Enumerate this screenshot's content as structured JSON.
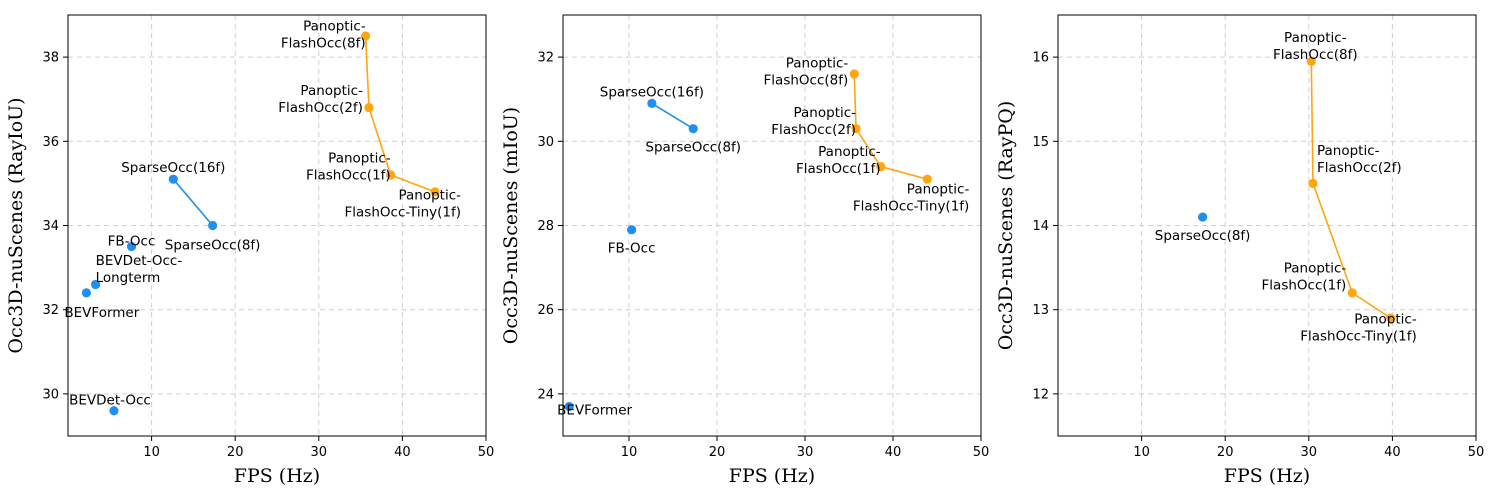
{
  "colors": {
    "baseline": "#1f8ff0",
    "ours": "#ffa50f"
  },
  "chart_data": [
    {
      "type": "scatter",
      "xlabel": "FPS (Hz)",
      "ylabel": "Occ3D-nuScenes (RayIoU)",
      "xlim": [
        0,
        50
      ],
      "ylim": [
        29,
        39
      ],
      "xticks": [
        10,
        20,
        30,
        40,
        50
      ],
      "yticks": [
        30,
        32,
        34,
        36,
        38
      ],
      "grid": true,
      "points": [
        {
          "x": 2.2,
          "y": 32.4,
          "label": [
            "BEVFormer"
          ],
          "anchor": "start",
          "dx": -22,
          "dy": 20,
          "color": "baseline"
        },
        {
          "x": 3.3,
          "y": 32.6,
          "label": [
            "BEVDet-Occ-",
            "Longterm"
          ],
          "anchor": "start",
          "dx": 0,
          "dy": -15,
          "color": "baseline"
        },
        {
          "x": 7.6,
          "y": 33.5,
          "label": [
            "FB-Occ"
          ],
          "anchor": "middle",
          "dx": 0,
          "dy": -5,
          "color": "baseline"
        },
        {
          "x": 5.5,
          "y": 29.6,
          "label": [
            "BEVDet-Occ"
          ],
          "anchor": "middle",
          "dx": -4,
          "dy": -10,
          "color": "baseline"
        },
        {
          "x": 12.6,
          "y": 35.1,
          "label": [
            "SparseOcc(16f)"
          ],
          "anchor": "middle",
          "dx": 0,
          "dy": -11,
          "color": "baseline"
        },
        {
          "x": 17.3,
          "y": 34.0,
          "label": [
            "SparseOcc(8f)"
          ],
          "anchor": "middle",
          "dx": 0,
          "dy": 20,
          "color": "baseline"
        },
        {
          "x": 35.6,
          "y": 38.5,
          "label": [
            "Panoptic-",
            "FlashOcc(8f)"
          ],
          "anchor": "end",
          "dx": 0,
          "dy": -1,
          "color": "ours"
        },
        {
          "x": 36.0,
          "y": 36.8,
          "label": [
            "Panoptic-",
            "FlashOcc(2f)"
          ],
          "anchor": "end",
          "dx": -6,
          "dy": -8,
          "color": "ours"
        },
        {
          "x": 38.6,
          "y": 35.2,
          "label": [
            "Panoptic-",
            "FlashOcc(1f)"
          ],
          "anchor": "end",
          "dx": 0,
          "dy": -8,
          "color": "ours"
        },
        {
          "x": 43.9,
          "y": 34.8,
          "label": [
            "Panoptic-",
            "FlashOcc-Tiny(1f)"
          ],
          "anchor": "end",
          "dx": 26,
          "dy": 12,
          "color": "ours"
        }
      ],
      "lines": [
        {
          "color": "baseline",
          "x": [
            12.6,
            17.3
          ],
          "y": [
            35.1,
            34.0
          ]
        },
        {
          "color": "ours",
          "x": [
            35.6,
            36.0,
            38.6,
            43.9
          ],
          "y": [
            38.5,
            36.8,
            35.2,
            34.8
          ]
        }
      ]
    },
    {
      "type": "scatter",
      "xlabel": "FPS (Hz)",
      "ylabel": "Occ3D-nuScenes (mIoU)",
      "xlim": [
        2.5,
        50
      ],
      "ylim": [
        23,
        33
      ],
      "xticks": [
        10,
        20,
        30,
        40,
        50
      ],
      "yticks": [
        24,
        26,
        28,
        30,
        32
      ],
      "grid": true,
      "points": [
        {
          "x": 3.2,
          "y": 23.7,
          "label": [
            "BEVFormer"
          ],
          "anchor": "start",
          "dx": -12,
          "dy": 4,
          "color": "baseline"
        },
        {
          "x": 10.3,
          "y": 27.9,
          "label": [
            "FB-Occ"
          ],
          "anchor": "middle",
          "dx": 0,
          "dy": 19,
          "color": "baseline"
        },
        {
          "x": 12.6,
          "y": 30.9,
          "label": [
            "SparseOcc(16f)"
          ],
          "anchor": "middle",
          "dx": 0,
          "dy": -11,
          "color": "baseline"
        },
        {
          "x": 17.3,
          "y": 30.3,
          "label": [
            "SparseOcc(8f)"
          ],
          "anchor": "middle",
          "dx": 0,
          "dy": 19,
          "color": "baseline"
        },
        {
          "x": 35.6,
          "y": 31.6,
          "label": [
            "Panoptic-",
            "FlashOcc(8f)"
          ],
          "anchor": "end",
          "dx": -6,
          "dy": -2,
          "color": "ours"
        },
        {
          "x": 35.8,
          "y": 30.3,
          "label": [
            "Panoptic-",
            "FlashOcc(2f)"
          ],
          "anchor": "end",
          "dx": 0,
          "dy": -7,
          "color": "ours"
        },
        {
          "x": 38.6,
          "y": 29.4,
          "label": [
            "Panoptic-",
            "FlashOcc(1f)"
          ],
          "anchor": "end",
          "dx": 0,
          "dy": -6,
          "color": "ours"
        },
        {
          "x": 43.9,
          "y": 29.1,
          "label": [
            "Panoptic-",
            "FlashOcc-Tiny(1f)"
          ],
          "anchor": "end",
          "dx": 42,
          "dy": 19,
          "color": "ours"
        }
      ],
      "lines": [
        {
          "color": "baseline",
          "x": [
            12.6,
            17.3
          ],
          "y": [
            30.9,
            30.3
          ]
        },
        {
          "color": "ours",
          "x": [
            35.6,
            35.8,
            38.6,
            43.9
          ],
          "y": [
            31.6,
            30.3,
            29.4,
            29.1
          ]
        }
      ]
    },
    {
      "type": "scatter",
      "xlabel": "FPS (Hz)",
      "ylabel": "Occ3D-nuScenes (RayPQ)",
      "xlim": [
        0,
        50
      ],
      "ylim": [
        11.5,
        16.5
      ],
      "xticks": [
        10,
        20,
        30,
        40,
        50
      ],
      "yticks": [
        12,
        13,
        14,
        15,
        16
      ],
      "grid": true,
      "points": [
        {
          "x": 17.3,
          "y": 14.1,
          "label": [
            "SparseOcc(8f)"
          ],
          "anchor": "middle",
          "dx": 0,
          "dy": 19,
          "color": "baseline"
        },
        {
          "x": 30.3,
          "y": 15.95,
          "label": [
            "Panoptic-",
            "FlashOcc(8f)"
          ],
          "anchor": "middle",
          "dx": 4,
          "dy": -15,
          "color": "ours"
        },
        {
          "x": 30.5,
          "y": 14.5,
          "label": [
            "Panoptic-",
            "FlashOcc(2f)"
          ],
          "anchor": "start",
          "dx": 4,
          "dy": -24,
          "color": "ours"
        },
        {
          "x": 35.2,
          "y": 13.2,
          "label": [
            "Panoptic-",
            "FlashOcc(1f)"
          ],
          "anchor": "end",
          "dx": -6,
          "dy": -16,
          "color": "ours"
        },
        {
          "x": 39.8,
          "y": 12.9,
          "label": [
            "Panoptic-",
            "FlashOcc-Tiny(1f)"
          ],
          "anchor": "end",
          "dx": 26,
          "dy": 10,
          "color": "ours"
        }
      ],
      "lines": [
        {
          "color": "ours",
          "x": [
            30.3,
            30.5,
            35.2,
            39.8
          ],
          "y": [
            15.95,
            14.5,
            13.2,
            12.9
          ]
        }
      ]
    }
  ]
}
